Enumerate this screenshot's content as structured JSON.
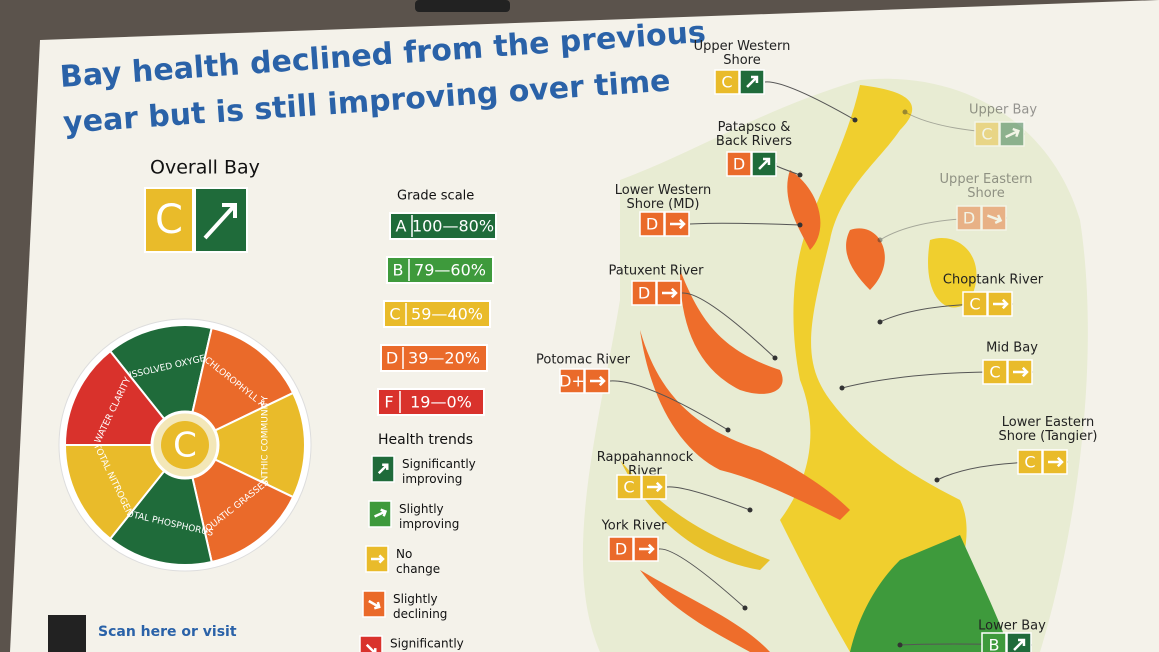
{
  "title": "Bay health declined from the previous year but is still improving over time",
  "overall": {
    "label": "Overall Bay",
    "grade": "C"
  },
  "wheel": {
    "center_grade": "C",
    "segments": [
      {
        "label": "DISSOLVED OXYGEN"
      },
      {
        "label": "CHLOROPHYLL A"
      },
      {
        "label": "BENTHIC COMMUNITY"
      },
      {
        "label": "AQUATIC GRASSES"
      },
      {
        "label": "TOTAL PHOSPHORUS"
      },
      {
        "label": "TOTAL NITROGEN"
      },
      {
        "label": "WATER CLARITY"
      }
    ]
  },
  "grade_scale": {
    "title": "Grade scale",
    "items": [
      {
        "grade": "A",
        "range": "100—80%"
      },
      {
        "grade": "B",
        "range": "79—60%"
      },
      {
        "grade": "C",
        "range": "59—40%"
      },
      {
        "grade": "D",
        "range": "39—20%"
      },
      {
        "grade": "F",
        "range": "19—0%"
      }
    ]
  },
  "health_trends": {
    "title": "Health trends",
    "items": [
      {
        "label": "Significantly improving"
      },
      {
        "label": "Slightly improving"
      },
      {
        "label": "No change"
      },
      {
        "label": "Slightly declining"
      },
      {
        "label": "Significantly"
      }
    ]
  },
  "regions": [
    {
      "name": "Upper Western Shore",
      "grade": "C"
    },
    {
      "name": "Upper Bay",
      "grade": "C"
    },
    {
      "name": "Patapsco & Back Rivers",
      "grade": "D"
    },
    {
      "name": "Lower Western Shore (MD)",
      "grade": "D"
    },
    {
      "name": "Upper Eastern Shore",
      "grade": "D"
    },
    {
      "name": "Patuxent River",
      "grade": "D"
    },
    {
      "name": "Choptank River",
      "grade": "C"
    },
    {
      "name": "Mid Bay",
      "grade": "C"
    },
    {
      "name": "Potomac River",
      "grade": "D+"
    },
    {
      "name": "Lower Eastern Shore (Tangier)",
      "grade": "C"
    },
    {
      "name": "Rappahannock River",
      "grade": "C"
    },
    {
      "name": "York River",
      "grade": "D"
    },
    {
      "name": "Lower Bay",
      "grade": "B"
    }
  ],
  "footer": {
    "scan": "Scan here or visit"
  }
}
